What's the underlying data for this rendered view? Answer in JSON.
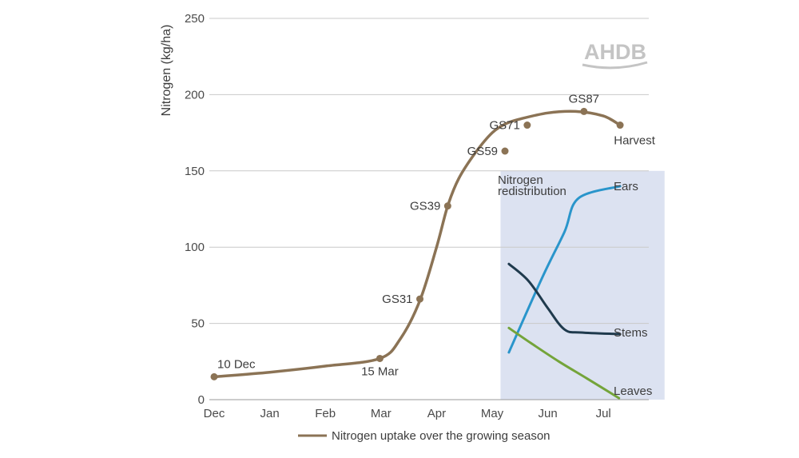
{
  "chart_data": {
    "type": "line",
    "xlabel": "",
    "ylabel": "Nitrogen (kg/ha)",
    "ylim": [
      0,
      250
    ],
    "y_ticks": [
      0,
      50,
      100,
      150,
      200,
      250
    ],
    "x_ticks": [
      "Dec",
      "Jan",
      "Feb",
      "Mar",
      "Apr",
      "May",
      "Jun",
      "Jul"
    ],
    "grid": "horizontal",
    "logo": "AHDB",
    "legend": {
      "placement": "bottom",
      "label": "Nitrogen uptake over the growing season"
    },
    "shaded_region": {
      "label": "Nitrogen redistribution",
      "x_start": 5.15,
      "x_end": 8.1,
      "y_max": 150,
      "color": "#dce2f1"
    },
    "series": [
      {
        "name": "Nitrogen uptake over the growing season",
        "color": "#8b7355",
        "x": [
          0.0,
          1.0,
          2.0,
          2.98,
          3.35,
          3.7,
          4.0,
          4.2,
          4.4,
          4.7,
          5.0,
          5.25,
          5.5,
          6.0,
          6.5,
          7.0,
          7.3
        ],
        "y": [
          15,
          18,
          22,
          27,
          40,
          65,
          100,
          127,
          145,
          162,
          175,
          181,
          184,
          188,
          189,
          186,
          180
        ],
        "markers": [
          {
            "x": 0.0,
            "y": 15,
            "label": "10 Dec",
            "label_pos": "above"
          },
          {
            "x": 2.98,
            "y": 27,
            "label": "15 Mar",
            "label_pos": "below"
          },
          {
            "x": 3.7,
            "y": 66,
            "label": "GS31",
            "label_pos": "left"
          },
          {
            "x": 4.2,
            "y": 127,
            "label": "GS39",
            "label_pos": "left"
          },
          {
            "x": 5.23,
            "y": 163,
            "label": "GS59",
            "label_pos": "left"
          },
          {
            "x": 5.63,
            "y": 180,
            "label": "GS71",
            "label_pos": "left"
          },
          {
            "x": 6.65,
            "y": 189,
            "label": "GS87",
            "label_pos": "above"
          },
          {
            "x": 7.3,
            "y": 180,
            "label": "Harvest",
            "label_pos": "below-right"
          }
        ]
      },
      {
        "name": "Ears",
        "color": "#2a95cb",
        "x": [
          5.3,
          5.9,
          6.3,
          6.55,
          7.3
        ],
        "y": [
          31,
          80,
          110,
          132,
          140
        ]
      },
      {
        "name": "Stems",
        "color": "#1f3a4d",
        "x": [
          5.3,
          5.65,
          6.0,
          6.3,
          6.6,
          7.3
        ],
        "y": [
          89,
          78,
          60,
          46,
          44,
          43
        ]
      },
      {
        "name": "Leaves",
        "color": "#74a43a",
        "x": [
          5.3,
          5.7,
          6.2,
          6.7,
          7.28
        ],
        "y": [
          47,
          37,
          25,
          14,
          1
        ]
      }
    ],
    "annotations": [
      "Nitrogen",
      "redistribution",
      "Ears",
      "Stems",
      "Leaves"
    ]
  }
}
